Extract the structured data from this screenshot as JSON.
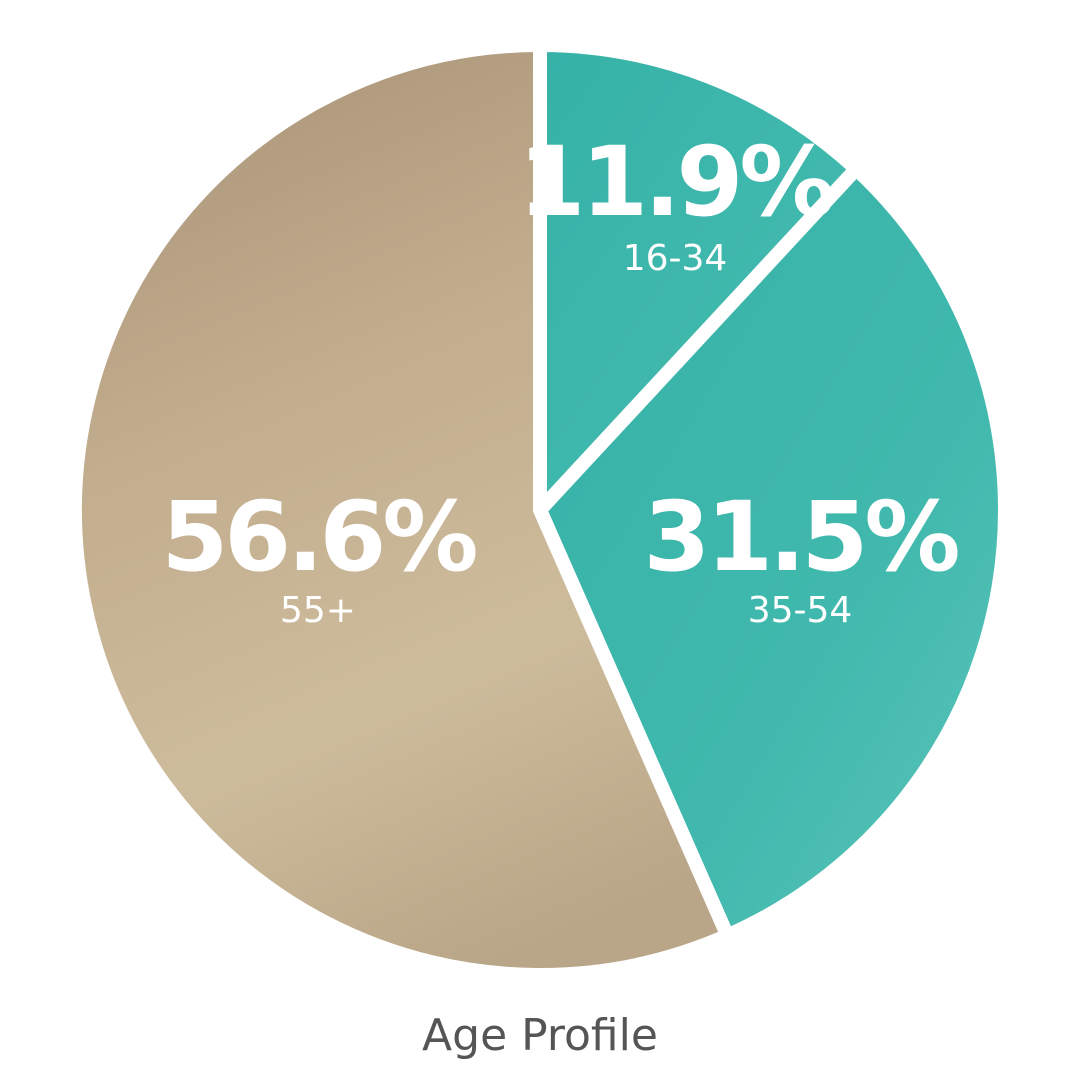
{
  "chart_data": {
    "type": "pie",
    "title": "Age Profile",
    "categories": [
      "16-34",
      "35-54",
      "55+"
    ],
    "values": [
      11.9,
      31.5,
      56.6
    ],
    "value_labels": [
      "11.9%",
      "31.5%",
      "56.6%"
    ],
    "start": "top (12 o'clock), clockwise",
    "legend": "none (labels inside slices)"
  },
  "colors": {
    "16-34": "#3db5aa",
    "35-54": "#3fb7ac",
    "55+": "#c8b594",
    "separator": "#ffffff",
    "caption": "#555555"
  }
}
